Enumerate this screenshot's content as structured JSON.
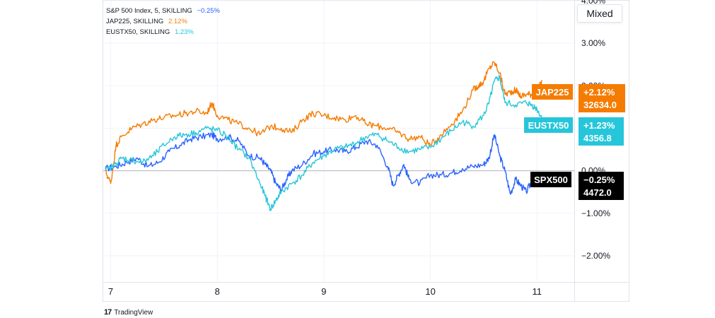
{
  "legend": [
    {
      "label": "S&P 500 Index, 5, SKILLING",
      "pct": "−0.25%",
      "color": "#2962ff"
    },
    {
      "label": "JAP225, SKILLING",
      "pct": "2.12%",
      "color": "#f57c00"
    },
    {
      "label": "EUSTX50, SKILLING",
      "pct": "1.23%",
      "color": "#26c6da"
    }
  ],
  "scale_button": "Mixed",
  "brand": {
    "logo": "17",
    "name": "TradingView"
  },
  "chart_data": {
    "type": "line",
    "title": "",
    "ylabel": "",
    "xlabel": "",
    "y_unit": "%",
    "ylim": [
      -2.6,
      4.0
    ],
    "y_ticks": [
      "4.00%",
      "3.00%",
      "2.00%",
      "1.00%",
      "0.00%",
      "−1.00%",
      "−2.00%"
    ],
    "y_tick_values": [
      4,
      3,
      2,
      1,
      0,
      -1,
      -2
    ],
    "x_ticks": [
      "7",
      "8",
      "9",
      "10",
      "11"
    ],
    "x_tick_values": [
      7,
      8,
      9,
      10,
      11
    ],
    "xlim": [
      6.93,
      11.35
    ],
    "grid": true,
    "series": [
      {
        "name": "SPX500",
        "color": "#2962ff",
        "badge_pct": "−0.25%",
        "badge_price": "4472.0",
        "badge_bg": "#000000",
        "x": [
          6.95,
          7.05,
          7.15,
          7.25,
          7.35,
          7.45,
          7.55,
          7.65,
          7.75,
          7.85,
          7.95,
          8.0,
          8.1,
          8.2,
          8.3,
          8.4,
          8.45,
          8.5,
          8.55,
          8.6,
          8.65,
          8.7,
          8.8,
          8.9,
          9.0,
          9.1,
          9.2,
          9.3,
          9.4,
          9.5,
          9.6,
          9.65,
          9.7,
          9.75,
          9.8,
          9.9,
          10.0,
          10.1,
          10.2,
          10.3,
          10.4,
          10.5,
          10.55,
          10.6,
          10.65,
          10.7,
          10.75,
          10.8,
          10.85,
          10.9,
          10.95
        ],
        "y": [
          0.05,
          0.1,
          0.2,
          0.3,
          0.1,
          0.2,
          0.45,
          0.6,
          0.75,
          0.8,
          0.85,
          0.75,
          0.8,
          0.7,
          0.35,
          0.3,
          0.15,
          0.0,
          -0.3,
          -0.45,
          -0.2,
          0.0,
          0.15,
          0.4,
          0.45,
          0.5,
          0.45,
          0.55,
          0.7,
          0.6,
          0.1,
          -0.35,
          -0.1,
          0.15,
          -0.2,
          -0.3,
          -0.1,
          -0.1,
          -0.05,
          0.05,
          0.1,
          0.15,
          0.3,
          0.85,
          0.35,
          0.0,
          -0.55,
          -0.2,
          -0.35,
          -0.5,
          -0.25
        ]
      },
      {
        "name": "JAP225",
        "color": "#f57c00",
        "badge_pct": "+2.12%",
        "badge_price": "32634.0",
        "badge_bg": "#f57c00",
        "x": [
          6.95,
          7.0,
          7.05,
          7.1,
          7.2,
          7.3,
          7.4,
          7.5,
          7.6,
          7.7,
          7.8,
          7.9,
          7.95,
          8.0,
          8.1,
          8.2,
          8.3,
          8.4,
          8.5,
          8.6,
          8.7,
          8.8,
          8.9,
          9.0,
          9.1,
          9.2,
          9.3,
          9.4,
          9.5,
          9.6,
          9.7,
          9.8,
          9.9,
          10.0,
          10.1,
          10.2,
          10.3,
          10.4,
          10.45,
          10.5,
          10.55,
          10.6,
          10.65,
          10.7,
          10.75,
          10.8,
          10.85,
          10.9,
          10.95,
          11.0,
          11.05
        ],
        "y": [
          0.0,
          -0.3,
          0.6,
          0.8,
          1.0,
          1.1,
          1.2,
          1.25,
          1.3,
          1.35,
          1.4,
          1.35,
          1.6,
          1.3,
          1.2,
          1.1,
          1.0,
          0.85,
          1.05,
          1.0,
          0.9,
          1.2,
          1.35,
          1.3,
          1.25,
          1.2,
          1.3,
          1.1,
          1.05,
          1.0,
          0.9,
          0.75,
          0.8,
          0.6,
          0.85,
          1.1,
          1.4,
          1.9,
          2.0,
          2.1,
          2.4,
          2.55,
          2.3,
          1.8,
          1.85,
          1.9,
          1.75,
          1.8,
          1.8,
          1.85,
          2.12
        ]
      },
      {
        "name": "EUSTX50",
        "color": "#26c6da",
        "badge_pct": "+1.23%",
        "badge_price": "4356.8",
        "badge_bg": "#26c6da",
        "x": [
          6.95,
          7.05,
          7.1,
          7.2,
          7.3,
          7.4,
          7.5,
          7.6,
          7.7,
          7.8,
          7.9,
          8.0,
          8.1,
          8.2,
          8.3,
          8.4,
          8.45,
          8.5,
          8.55,
          8.6,
          8.7,
          8.8,
          8.9,
          9.0,
          9.1,
          9.2,
          9.3,
          9.4,
          9.5,
          9.6,
          9.7,
          9.8,
          9.9,
          10.0,
          10.1,
          10.2,
          10.3,
          10.4,
          10.5,
          10.55,
          10.6,
          10.65,
          10.7,
          10.8,
          10.9,
          10.95,
          11.0,
          11.05
        ],
        "y": [
          0.0,
          0.15,
          0.3,
          0.25,
          0.2,
          0.35,
          0.6,
          0.8,
          0.85,
          0.9,
          1.0,
          0.95,
          0.8,
          0.5,
          0.3,
          -0.3,
          -0.6,
          -0.9,
          -0.7,
          -0.5,
          -0.3,
          -0.1,
          0.2,
          0.35,
          0.5,
          0.55,
          0.65,
          0.8,
          0.85,
          0.7,
          0.55,
          0.45,
          0.5,
          0.55,
          0.75,
          0.95,
          1.15,
          1.05,
          1.3,
          1.6,
          2.1,
          2.2,
          1.6,
          1.55,
          1.6,
          1.55,
          1.45,
          1.23
        ]
      }
    ]
  }
}
